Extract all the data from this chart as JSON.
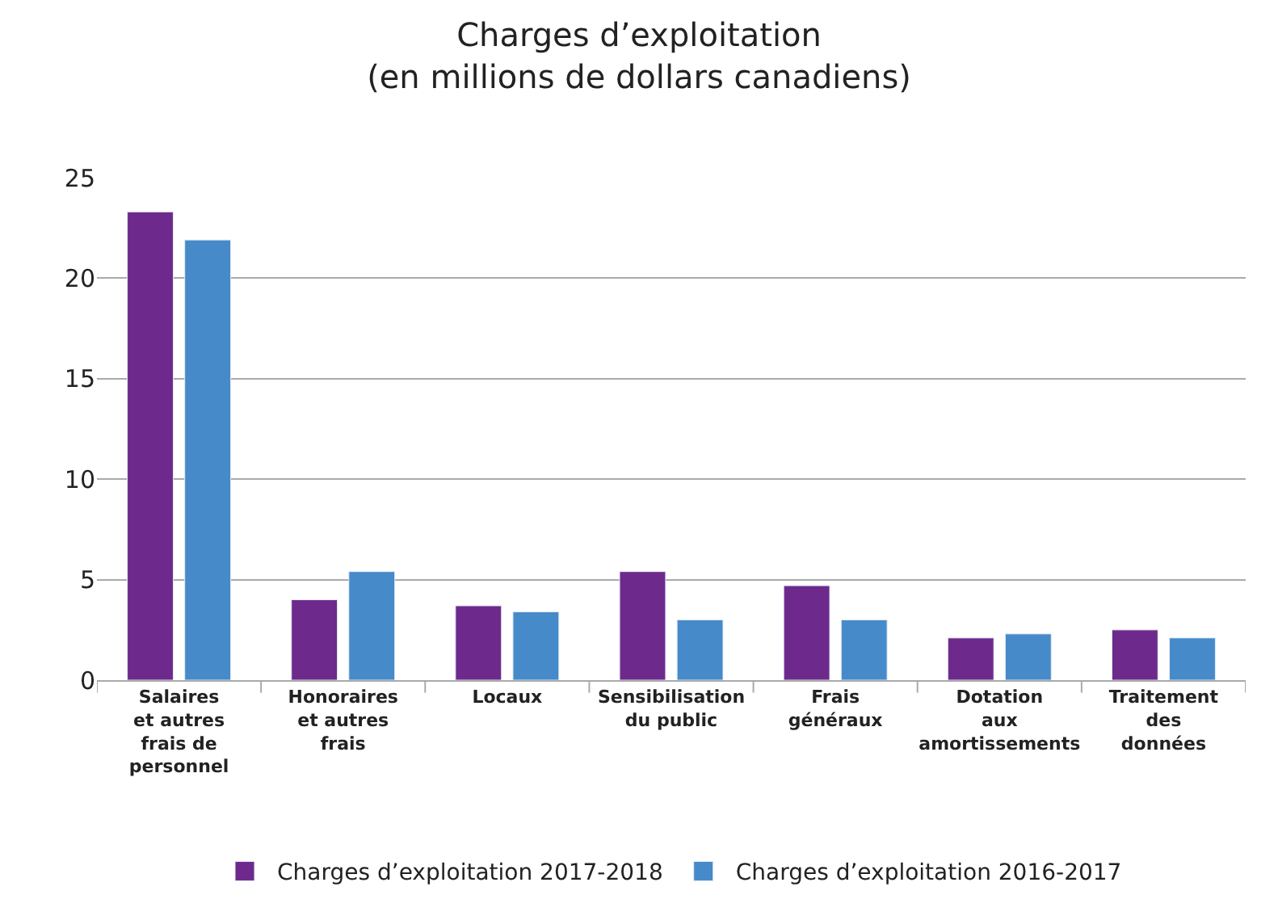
{
  "chart_data": {
    "type": "bar",
    "title": "Charges d’exploitation\n(en millions de dollars canadiens)",
    "categories": [
      "Salaires\net autres\nfrais de\npersonnel",
      "Honoraires\net autres\nfrais",
      "Locaux",
      "Sensibilisation\ndu public",
      "Frais\ngénéraux",
      "Dotation\naux\namortissements",
      "Traitement\ndes\ndonnées"
    ],
    "series": [
      {
        "name": "Charges d’exploitation 2017-2018",
        "color": "#6d2a8c",
        "values": [
          23.3,
          4.0,
          3.7,
          5.4,
          4.7,
          2.1,
          2.5
        ]
      },
      {
        "name": "Charges d’exploitation 2016-2017",
        "color": "#468ac9",
        "values": [
          21.9,
          5.4,
          3.4,
          3.0,
          3.0,
          2.3,
          2.1
        ]
      }
    ],
    "ylim": [
      0,
      25
    ],
    "yticks": [
      0,
      5,
      10,
      15,
      20,
      25
    ],
    "grid": "y",
    "legend": "bottom"
  }
}
